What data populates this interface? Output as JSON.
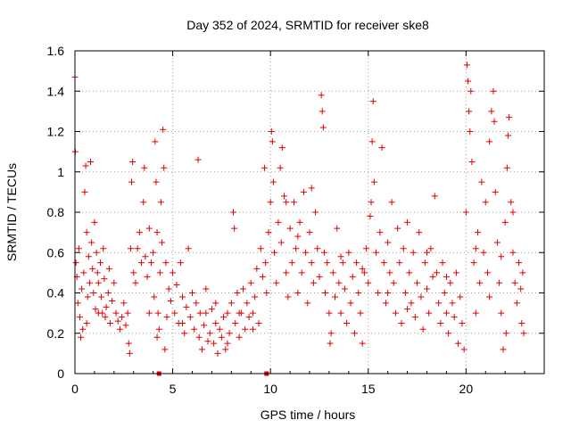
{
  "chart_data": {
    "type": "scatter",
    "title": "Day 352 of 2024, SRMTID for receiver ske8",
    "xlabel": "GPS time / hours",
    "ylabel": "SRMTID / TECUs",
    "xlim": [
      0,
      24
    ],
    "ylim": [
      0,
      1.6
    ],
    "x_ticks": [
      0,
      5,
      10,
      15,
      20
    ],
    "x_tick_labels": [
      "0",
      "5",
      "10",
      "15",
      "20"
    ],
    "y_ticks": [
      0,
      0.2,
      0.4,
      0.6,
      0.8,
      1.0,
      1.2,
      1.4,
      1.6
    ],
    "y_tick_labels": [
      "0",
      "0.2",
      "0.4",
      "0.6",
      "0.8",
      "1",
      "1.2",
      "1.4",
      "1.6"
    ],
    "grid": true,
    "marker": "+",
    "color": "#e00000",
    "series": [
      {
        "name": "SRMTID",
        "points": [
          [
            0.0,
            1.47
          ],
          [
            0.02,
            1.1
          ],
          [
            0.05,
            0.55
          ],
          [
            0.1,
            0.48
          ],
          [
            0.15,
            0.35
          ],
          [
            0.2,
            0.62
          ],
          [
            0.25,
            0.28
          ],
          [
            0.3,
            0.18
          ],
          [
            0.35,
            0.42
          ],
          [
            0.4,
            0.22
          ],
          [
            0.45,
            0.5
          ],
          [
            0.5,
            0.9
          ],
          [
            0.55,
            1.03
          ],
          [
            0.6,
            0.7
          ],
          [
            0.65,
            0.38
          ],
          [
            0.7,
            0.58
          ],
          [
            0.75,
            0.45
          ],
          [
            0.8,
            1.05
          ],
          [
            0.85,
            0.65
          ],
          [
            0.9,
            0.52
          ],
          [
            0.95,
            0.4
          ],
          [
            1.0,
            0.75
          ],
          [
            1.05,
            0.32
          ],
          [
            1.1,
            0.6
          ],
          [
            1.15,
            0.5
          ],
          [
            1.2,
            0.45
          ],
          [
            1.3,
            0.55
          ],
          [
            1.35,
            0.38
          ],
          [
            1.4,
            0.3
          ],
          [
            1.45,
            0.62
          ],
          [
            1.5,
            0.47
          ],
          [
            1.55,
            0.28
          ],
          [
            1.6,
            0.33
          ],
          [
            1.7,
            0.4
          ],
          [
            1.75,
            0.52
          ],
          [
            1.8,
            0.25
          ],
          [
            1.9,
            0.36
          ],
          [
            2.0,
            0.45
          ],
          [
            2.1,
            0.3
          ],
          [
            2.2,
            0.26
          ],
          [
            2.3,
            0.22
          ],
          [
            2.4,
            0.28
          ],
          [
            2.5,
            0.35
          ],
          [
            2.6,
            0.24
          ],
          [
            2.7,
            0.3
          ],
          [
            2.75,
            0.15
          ],
          [
            2.8,
            0.1
          ],
          [
            2.85,
            0.62
          ],
          [
            2.9,
            0.95
          ],
          [
            2.95,
            1.05
          ],
          [
            3.0,
            0.5
          ],
          [
            3.1,
            0.45
          ],
          [
            3.2,
            0.62
          ],
          [
            3.3,
            0.7
          ],
          [
            3.4,
            0.55
          ],
          [
            3.5,
            0.85
          ],
          [
            3.55,
            1.02
          ],
          [
            3.6,
            0.58
          ],
          [
            3.7,
            0.48
          ],
          [
            3.8,
            0.72
          ],
          [
            3.9,
            0.55
          ],
          [
            4.0,
            0.6
          ],
          [
            4.05,
            0.38
          ],
          [
            4.1,
            1.15
          ],
          [
            4.15,
            0.95
          ],
          [
            4.2,
            0.7
          ],
          [
            4.25,
            0.3
          ],
          [
            4.3,
            0.22
          ],
          [
            4.35,
            0.5
          ],
          [
            4.4,
            0.85
          ],
          [
            4.45,
            0.65
          ],
          [
            4.5,
            1.21
          ],
          [
            4.55,
            1.02
          ],
          [
            4.6,
            0.12
          ],
          [
            4.65,
            0.55
          ],
          [
            4.7,
            0.28
          ],
          [
            4.8,
            0.42
          ],
          [
            4.9,
            0.36
          ],
          [
            5.0,
            0.5
          ],
          [
            5.1,
            0.3
          ],
          [
            5.2,
            0.44
          ],
          [
            5.3,
            0.25
          ],
          [
            5.4,
            0.55
          ],
          [
            5.5,
            0.38
          ],
          [
            5.6,
            0.2
          ],
          [
            5.7,
            0.33
          ],
          [
            5.8,
            0.62
          ],
          [
            5.9,
            0.28
          ],
          [
            6.0,
            0.4
          ],
          [
            6.1,
            0.22
          ],
          [
            6.2,
            0.35
          ],
          [
            6.3,
            1.06
          ],
          [
            6.35,
            0.18
          ],
          [
            6.4,
            0.3
          ],
          [
            6.5,
            0.12
          ],
          [
            6.6,
            0.24
          ],
          [
            6.7,
            0.42
          ],
          [
            6.8,
            0.16
          ],
          [
            6.9,
            0.2
          ],
          [
            7.0,
            0.32
          ],
          [
            7.1,
            0.15
          ],
          [
            7.2,
            0.25
          ],
          [
            7.3,
            0.1
          ],
          [
            7.4,
            0.22
          ],
          [
            7.5,
            0.18
          ],
          [
            7.6,
            0.28
          ],
          [
            7.7,
            0.12
          ],
          [
            7.8,
            0.3
          ],
          [
            7.9,
            0.2
          ],
          [
            8.0,
            0.35
          ],
          [
            8.1,
            0.8
          ],
          [
            8.15,
            0.72
          ],
          [
            8.2,
            0.25
          ],
          [
            8.3,
            0.4
          ],
          [
            8.4,
            0.18
          ],
          [
            8.5,
            0.3
          ],
          [
            8.6,
            0.42
          ],
          [
            8.7,
            0.22
          ],
          [
            8.8,
            0.35
          ],
          [
            8.9,
            0.28
          ],
          [
            9.0,
            0.45
          ],
          [
            9.1,
            0.3
          ],
          [
            9.2,
            0.38
          ],
          [
            9.3,
            0.52
          ],
          [
            9.4,
            0.25
          ],
          [
            9.5,
            0.62
          ],
          [
            9.6,
            0.48
          ],
          [
            9.7,
            1.02
          ],
          [
            9.75,
            0.55
          ],
          [
            9.8,
            0.4
          ],
          [
            9.9,
            0.7
          ],
          [
            10.0,
            0.85
          ],
          [
            10.05,
            1.2
          ],
          [
            10.1,
            1.15
          ],
          [
            10.15,
            0.95
          ],
          [
            10.2,
            0.6
          ],
          [
            10.3,
            0.45
          ],
          [
            10.4,
            0.75
          ],
          [
            10.5,
            1.02
          ],
          [
            10.55,
            0.65
          ],
          [
            10.6,
            1.12
          ],
          [
            10.7,
            0.88
          ],
          [
            10.8,
            0.5
          ],
          [
            10.9,
            0.38
          ],
          [
            11.0,
            0.72
          ],
          [
            11.1,
            0.55
          ],
          [
            11.2,
            0.85
          ],
          [
            11.3,
            0.62
          ],
          [
            11.4,
            0.4
          ],
          [
            11.5,
            0.75
          ],
          [
            11.6,
            0.5
          ],
          [
            11.7,
            0.9
          ],
          [
            11.8,
            0.6
          ],
          [
            11.9,
            0.35
          ],
          [
            12.0,
            0.7
          ],
          [
            12.1,
            0.55
          ],
          [
            12.2,
            0.45
          ],
          [
            12.3,
            0.8
          ],
          [
            12.4,
            0.62
          ],
          [
            12.5,
            0.48
          ],
          [
            12.6,
            1.38
          ],
          [
            12.65,
            1.3
          ],
          [
            12.7,
            1.22
          ],
          [
            12.75,
            0.6
          ],
          [
            12.8,
            0.4
          ],
          [
            12.9,
            0.55
          ],
          [
            13.0,
            0.3
          ],
          [
            13.05,
            0.15
          ],
          [
            13.1,
            0.2
          ],
          [
            13.2,
            0.5
          ],
          [
            13.3,
            0.38
          ],
          [
            13.4,
            0.72
          ],
          [
            13.5,
            0.45
          ],
          [
            13.6,
            0.3
          ],
          [
            13.7,
            0.55
          ],
          [
            13.8,
            0.42
          ],
          [
            13.9,
            0.25
          ],
          [
            14.0,
            0.6
          ],
          [
            14.1,
            0.35
          ],
          [
            14.2,
            0.48
          ],
          [
            14.3,
            0.2
          ],
          [
            14.4,
            0.55
          ],
          [
            14.5,
            0.4
          ],
          [
            14.6,
            0.3
          ],
          [
            14.7,
            0.15
          ],
          [
            14.8,
            0.5
          ],
          [
            14.9,
            0.62
          ],
          [
            15.0,
            0.45
          ],
          [
            15.1,
            0.78
          ],
          [
            15.15,
            0.85
          ],
          [
            15.2,
            1.15
          ],
          [
            15.25,
            1.35
          ],
          [
            15.3,
            0.95
          ],
          [
            15.4,
            0.6
          ],
          [
            15.5,
            0.4
          ],
          [
            15.6,
            0.7
          ],
          [
            15.7,
            1.12
          ],
          [
            15.8,
            0.55
          ],
          [
            15.9,
            0.35
          ],
          [
            16.0,
            0.65
          ],
          [
            16.1,
            0.5
          ],
          [
            16.2,
            0.85
          ],
          [
            16.3,
            0.45
          ],
          [
            16.4,
            0.3
          ],
          [
            16.5,
            0.72
          ],
          [
            16.6,
            0.55
          ],
          [
            16.7,
            0.25
          ],
          [
            16.8,
            0.62
          ],
          [
            16.9,
            0.4
          ],
          [
            17.0,
            0.75
          ],
          [
            17.1,
            0.5
          ],
          [
            17.2,
            0.35
          ],
          [
            17.3,
            0.6
          ],
          [
            17.4,
            0.28
          ],
          [
            17.5,
            0.45
          ],
          [
            17.6,
            0.7
          ],
          [
            17.7,
            0.38
          ],
          [
            17.8,
            0.22
          ],
          [
            17.9,
            0.55
          ],
          [
            18.0,
            0.42
          ],
          [
            18.1,
            0.3
          ],
          [
            18.2,
            0.62
          ],
          [
            18.3,
            0.48
          ],
          [
            18.4,
            0.88
          ],
          [
            18.5,
            0.5
          ],
          [
            18.6,
            0.35
          ],
          [
            18.7,
            0.25
          ],
          [
            18.8,
            0.55
          ],
          [
            18.9,
            0.4
          ],
          [
            19.0,
            0.3
          ],
          [
            19.1,
            0.2
          ],
          [
            19.2,
            0.45
          ],
          [
            19.3,
            0.35
          ],
          [
            19.4,
            0.28
          ],
          [
            19.5,
            0.5
          ],
          [
            19.6,
            0.15
          ],
          [
            19.7,
            0.38
          ],
          [
            19.8,
            0.25
          ],
          [
            19.9,
            0.12
          ],
          [
            20.0,
            0.8
          ],
          [
            20.05,
            1.53
          ],
          [
            20.1,
            1.45
          ],
          [
            20.15,
            1.3
          ],
          [
            20.2,
            1.2
          ],
          [
            20.25,
            1.4
          ],
          [
            20.3,
            1.05
          ],
          [
            20.4,
            0.55
          ],
          [
            20.5,
            0.3
          ],
          [
            20.6,
            0.7
          ],
          [
            20.7,
            0.45
          ],
          [
            20.8,
            0.95
          ],
          [
            20.9,
            0.6
          ],
          [
            21.0,
            0.85
          ],
          [
            21.1,
            0.5
          ],
          [
            21.2,
            1.15
          ],
          [
            21.3,
            1.3
          ],
          [
            21.4,
            1.4
          ],
          [
            21.45,
            1.25
          ],
          [
            21.5,
            0.9
          ],
          [
            21.6,
            0.65
          ],
          [
            21.7,
            0.45
          ],
          [
            21.8,
            0.3
          ],
          [
            21.9,
            0.12
          ],
          [
            22.0,
            0.75
          ],
          [
            22.05,
            0.2
          ],
          [
            22.1,
            1.02
          ],
          [
            22.15,
            1.18
          ],
          [
            22.2,
            1.27
          ],
          [
            22.3,
            0.85
          ],
          [
            22.4,
            0.6
          ],
          [
            22.5,
            0.45
          ],
          [
            22.6,
            0.35
          ],
          [
            22.7,
            0.55
          ],
          [
            22.8,
            0.42
          ],
          [
            22.85,
            0.25
          ],
          [
            22.9,
            0.5
          ],
          [
            22.95,
            0.2
          ],
          [
            3.8,
            0.3
          ],
          [
            4.2,
            0.18
          ],
          [
            5.5,
            0.25
          ],
          [
            6.7,
            0.3
          ],
          [
            7.2,
            0.35
          ],
          [
            7.8,
            0.15
          ],
          [
            8.4,
            0.3
          ],
          [
            9.1,
            0.22
          ],
          [
            10.8,
            0.85
          ],
          [
            11.4,
            0.68
          ],
          [
            12.1,
            0.92
          ],
          [
            13.6,
            0.58
          ],
          [
            14.7,
            0.52
          ],
          [
            16.0,
            0.4
          ],
          [
            17.0,
            0.32
          ],
          [
            18.0,
            0.6
          ],
          [
            19.0,
            0.48
          ],
          [
            20.5,
            0.62
          ],
          [
            21.2,
            0.38
          ],
          [
            21.8,
            0.58
          ],
          [
            22.4,
            0.8
          ],
          [
            0.6,
            0.25
          ],
          [
            1.2,
            0.3
          ]
        ]
      }
    ],
    "bottom_markers_x": [
      4.3,
      9.8
    ]
  }
}
